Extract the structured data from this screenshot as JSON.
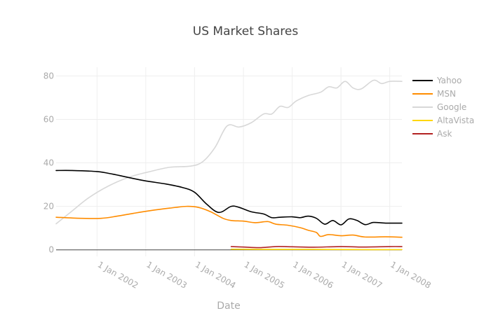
{
  "chart_data": {
    "type": "line",
    "title": "US Market Shares",
    "xlabel": "Date",
    "ylabel": "",
    "ylim": [
      -3,
      84
    ],
    "xlim": [
      "2001-03-01",
      "2008-04-01"
    ],
    "yticks": [
      0,
      20,
      40,
      60,
      80
    ],
    "xticks": [
      "2002-01-01",
      "2003-01-01",
      "2004-01-01",
      "2005-01-01",
      "2006-01-01",
      "2007-01-01",
      "2008-01-01"
    ],
    "xtick_labels": [
      "1 Jan 2002",
      "1 Jan 2003",
      "1 Jan 2004",
      "1 Jan 2005",
      "1 Jan 2006",
      "1 Jan 2007",
      "1 Jan 2008"
    ],
    "grid": true,
    "legend_position": "top-right",
    "series": [
      {
        "name": "Yahoo",
        "color": "#000000",
        "points": [
          [
            "2001-03-01",
            36.5
          ],
          [
            "2001-07-01",
            36.5
          ],
          [
            "2002-01-01",
            36.0
          ],
          [
            "2002-05-01",
            34.8
          ],
          [
            "2002-09-01",
            33.2
          ],
          [
            "2003-01-01",
            31.7
          ],
          [
            "2003-06-01",
            30.3
          ],
          [
            "2003-10-01",
            28.7
          ],
          [
            "2004-01-01",
            26.5
          ],
          [
            "2004-04-01",
            21.0
          ],
          [
            "2004-07-01",
            17.2
          ],
          [
            "2004-10-01",
            20.0
          ],
          [
            "2004-12-01",
            19.5
          ],
          [
            "2005-03-01",
            17.5
          ],
          [
            "2005-06-01",
            16.5
          ],
          [
            "2005-08-01",
            14.8
          ],
          [
            "2005-10-01",
            15.0
          ],
          [
            "2006-01-01",
            15.2
          ],
          [
            "2006-03-01",
            14.8
          ],
          [
            "2006-05-01",
            15.5
          ],
          [
            "2006-07-01",
            14.5
          ],
          [
            "2006-09-01",
            11.8
          ],
          [
            "2006-11-01",
            13.5
          ],
          [
            "2007-01-01",
            11.5
          ],
          [
            "2007-03-01",
            14.2
          ],
          [
            "2007-05-01",
            13.5
          ],
          [
            "2007-07-01",
            11.6
          ],
          [
            "2007-09-01",
            12.6
          ],
          [
            "2007-12-01",
            12.3
          ],
          [
            "2008-04-01",
            12.3
          ]
        ]
      },
      {
        "name": "MSN",
        "color": "#ff8c00",
        "points": [
          [
            "2001-03-01",
            15.0
          ],
          [
            "2001-09-01",
            14.5
          ],
          [
            "2002-02-01",
            14.5
          ],
          [
            "2002-06-01",
            15.5
          ],
          [
            "2002-10-01",
            16.8
          ],
          [
            "2003-02-01",
            18.0
          ],
          [
            "2003-07-01",
            19.2
          ],
          [
            "2003-11-01",
            20.0
          ],
          [
            "2004-02-01",
            19.5
          ],
          [
            "2004-05-01",
            17.5
          ],
          [
            "2004-08-01",
            14.5
          ],
          [
            "2004-10-01",
            13.5
          ],
          [
            "2005-01-01",
            13.2
          ],
          [
            "2005-04-01",
            12.5
          ],
          [
            "2005-07-01",
            13.0
          ],
          [
            "2005-09-01",
            11.8
          ],
          [
            "2005-12-01",
            11.3
          ],
          [
            "2006-03-01",
            10.2
          ],
          [
            "2006-05-01",
            9.0
          ],
          [
            "2006-07-01",
            8.0
          ],
          [
            "2006-08-01",
            6.2
          ],
          [
            "2006-10-01",
            7.0
          ],
          [
            "2007-01-01",
            6.5
          ],
          [
            "2007-04-01",
            6.8
          ],
          [
            "2007-07-01",
            5.9
          ],
          [
            "2007-12-01",
            6.0
          ],
          [
            "2008-04-01",
            5.8
          ]
        ]
      },
      {
        "name": "Google",
        "color": "#d8d8d8",
        "points": [
          [
            "2001-03-01",
            12.0
          ],
          [
            "2001-07-01",
            18.0
          ],
          [
            "2001-11-01",
            24.0
          ],
          [
            "2002-04-01",
            29.5
          ],
          [
            "2002-09-01",
            33.5
          ],
          [
            "2003-02-01",
            36.0
          ],
          [
            "2003-07-01",
            38.0
          ],
          [
            "2003-12-01",
            38.5
          ],
          [
            "2004-03-01",
            40.5
          ],
          [
            "2004-06-01",
            47.0
          ],
          [
            "2004-09-01",
            57.0
          ],
          [
            "2004-12-01",
            56.5
          ],
          [
            "2005-03-01",
            58.5
          ],
          [
            "2005-06-01",
            62.5
          ],
          [
            "2005-08-01",
            62.5
          ],
          [
            "2005-10-01",
            66.0
          ],
          [
            "2005-12-01",
            65.5
          ],
          [
            "2006-02-01",
            68.5
          ],
          [
            "2006-05-01",
            71.0
          ],
          [
            "2006-08-01",
            72.5
          ],
          [
            "2006-10-01",
            75.0
          ],
          [
            "2006-12-01",
            74.5
          ],
          [
            "2007-02-01",
            77.5
          ],
          [
            "2007-04-01",
            74.5
          ],
          [
            "2007-06-01",
            74.0
          ],
          [
            "2007-09-01",
            78.0
          ],
          [
            "2007-11-01",
            76.5
          ],
          [
            "2008-01-01",
            77.5
          ],
          [
            "2008-04-01",
            77.5
          ]
        ]
      },
      {
        "name": "AltaVista",
        "color": "#ffd700",
        "points": [
          [
            "2004-10-01",
            0.3
          ],
          [
            "2005-06-01",
            0.2
          ],
          [
            "2006-06-01",
            0.2
          ],
          [
            "2007-06-01",
            0.1
          ],
          [
            "2008-04-01",
            0.1
          ]
        ]
      },
      {
        "name": "Ask",
        "color": "#b22222",
        "points": [
          [
            "2004-10-01",
            1.5
          ],
          [
            "2005-01-01",
            1.3
          ],
          [
            "2005-05-01",
            1.0
          ],
          [
            "2005-09-01",
            1.5
          ],
          [
            "2006-01-01",
            1.4
          ],
          [
            "2006-06-01",
            1.2
          ],
          [
            "2007-01-01",
            1.5
          ],
          [
            "2007-06-01",
            1.3
          ],
          [
            "2008-01-01",
            1.5
          ],
          [
            "2008-04-01",
            1.5
          ]
        ]
      }
    ]
  }
}
